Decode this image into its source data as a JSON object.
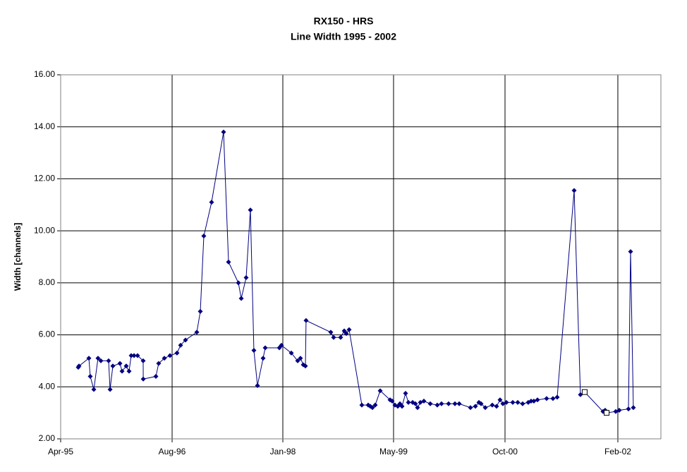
{
  "chart_data": {
    "type": "line",
    "title": "RX150 - HRS",
    "subtitle": "Line Width 1995 - 2002",
    "y_label": "Width [channels]",
    "grid": true,
    "xlim": [
      1995.25,
      2002.612
    ],
    "xticks": [
      {
        "value": 1995.25,
        "label": "Apr-95"
      },
      {
        "value": 1996.617,
        "label": "Aug-96"
      },
      {
        "value": 1997.975,
        "label": "Jan-98"
      },
      {
        "value": 1999.333,
        "label": "May-99"
      },
      {
        "value": 2000.7,
        "label": "Oct-00"
      },
      {
        "value": 2002.084,
        "label": "Feb-02"
      }
    ],
    "ylim": [
      2,
      16
    ],
    "yticks": [
      {
        "value": 2,
        "label": "2.00"
      },
      {
        "value": 4,
        "label": "4.00"
      },
      {
        "value": 6,
        "label": "6.00"
      },
      {
        "value": 8,
        "label": "8.00"
      },
      {
        "value": 10,
        "label": "10.00"
      },
      {
        "value": 12,
        "label": "12.00"
      },
      {
        "value": 14,
        "label": "14.00"
      },
      {
        "value": 16,
        "label": "16.00"
      }
    ],
    "series": [
      {
        "color": "#000080",
        "marker": "diamond",
        "line": true,
        "x": [
          1995.466,
          1995.475,
          1995.596,
          1995.613,
          1995.657,
          1995.708,
          1995.743,
          1995.838,
          1995.856,
          1995.89,
          1995.977,
          1996.003,
          1996.054,
          1996.089,
          1996.115,
          1996.15,
          1996.193,
          1996.262,
          1996.263,
          1996.418,
          1996.452,
          1996.522,
          1996.591,
          1996.677,
          1996.721,
          1996.781,
          1996.92,
          1996.963,
          1997.006,
          1997.101,
          1997.248,
          1997.309,
          1997.43,
          1997.465,
          1997.525,
          1997.577,
          1997.62,
          1997.664,
          1997.733,
          1997.759,
          1997.932,
          1997.958,
          1998.079,
          1998.157,
          1998.191,
          1998.226,
          1998.252,
          1998.26,
          1998.563,
          1998.598,
          1998.684,
          1998.728,
          1998.753,
          1998.788,
          1998.944,
          1999.022,
          1999.048,
          1999.074,
          1999.108,
          1999.169,
          1999.29,
          1999.316,
          1999.35,
          1999.385,
          1999.411,
          1999.437,
          1999.48,
          1999.515,
          1999.567,
          1999.601,
          1999.627,
          1999.662,
          1999.705,
          1999.783,
          1999.869,
          1999.921,
          2000.008,
          2000.086,
          2000.138,
          2000.276,
          2000.337,
          2000.38,
          2000.406,
          2000.458,
          2000.544,
          2000.596,
          2000.639,
          2000.674,
          2000.717,
          2000.795,
          2000.856,
          2000.916,
          2000.985,
          2001.02,
          2001.054,
          2001.098,
          2001.21,
          2001.288,
          2001.34,
          2001.548,
          2001.625,
          2001.677,
          2001.902,
          2001.928,
          2001.946,
          2002.058,
          2002.101,
          2002.214,
          2002.24,
          2002.274
        ],
        "values": [
          4.75,
          4.8,
          5.1,
          4.4,
          3.9,
          5.1,
          5.0,
          5.0,
          3.9,
          4.8,
          4.9,
          4.6,
          4.8,
          4.6,
          5.2,
          5.2,
          5.2,
          5.0,
          4.3,
          4.4,
          4.9,
          5.1,
          5.2,
          5.3,
          5.6,
          5.8,
          6.1,
          6.9,
          9.8,
          11.1,
          13.8,
          8.8,
          8.0,
          7.4,
          8.2,
          10.8,
          5.4,
          4.05,
          5.1,
          5.5,
          5.5,
          5.6,
          5.3,
          5.0,
          5.1,
          4.85,
          4.8,
          6.55,
          6.1,
          5.9,
          5.9,
          6.15,
          6.05,
          6.2,
          3.3,
          3.3,
          3.25,
          3.2,
          3.3,
          3.85,
          3.5,
          3.45,
          3.3,
          3.25,
          3.35,
          3.25,
          3.75,
          3.4,
          3.4,
          3.35,
          3.2,
          3.4,
          3.45,
          3.35,
          3.3,
          3.35,
          3.35,
          3.35,
          3.35,
          3.2,
          3.25,
          3.4,
          3.35,
          3.2,
          3.3,
          3.25,
          3.5,
          3.35,
          3.4,
          3.4,
          3.4,
          3.35,
          3.4,
          3.45,
          3.45,
          3.5,
          3.55,
          3.55,
          3.6,
          11.55,
          3.7,
          3.8,
          3.05,
          3.1,
          3.0,
          3.05,
          3.1,
          3.15,
          9.2,
          3.2
        ]
      },
      {
        "color": "#000000",
        "marker": "square-open",
        "line": false,
        "x": [
          2001.677,
          2001.946
        ],
        "values": [
          3.8,
          3.0
        ]
      }
    ]
  }
}
